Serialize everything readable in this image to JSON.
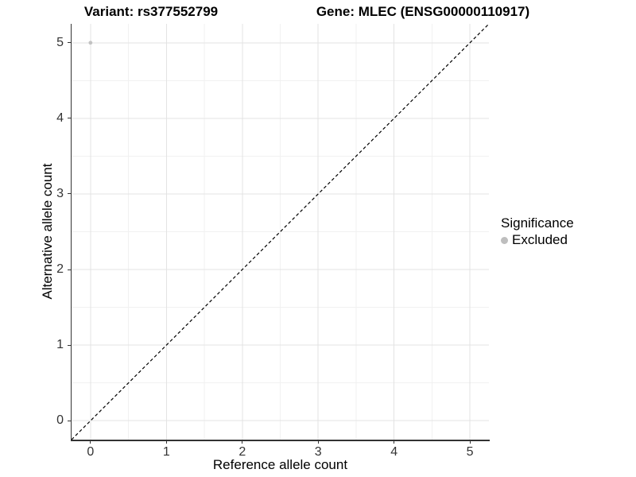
{
  "page": {
    "background": "#ffffff"
  },
  "titles": {
    "variant": "Variant: rs377552799",
    "gene": "Gene: MLEC (ENSG00000110917)"
  },
  "chart_data": {
    "type": "scatter",
    "xlabel": "Reference allele count",
    "ylabel": "Alternative allele count",
    "xlim": [
      -0.25,
      5.25
    ],
    "ylim": [
      -0.25,
      5.25
    ],
    "xticks": [
      0,
      1,
      2,
      3,
      4,
      5
    ],
    "yticks": [
      0,
      1,
      2,
      3,
      4,
      5
    ],
    "grid": "major and minor gridlines on white background",
    "points": [
      {
        "x": 0,
        "y": 5,
        "significance": "Excluded"
      }
    ],
    "identity_line": {
      "slope": 1,
      "intercept": 0,
      "style": "dashed",
      "color": "#000000"
    },
    "legend": {
      "title": "Significance",
      "position": "right",
      "items": [
        {
          "label": "Excluded",
          "color": "#bebebe"
        }
      ]
    },
    "colors": {
      "point": "#c2c2c2",
      "grid_major": "#e3e3e3",
      "grid_minor": "#f1f1f1",
      "axis_line": "#333333",
      "tick": "#333333"
    }
  }
}
